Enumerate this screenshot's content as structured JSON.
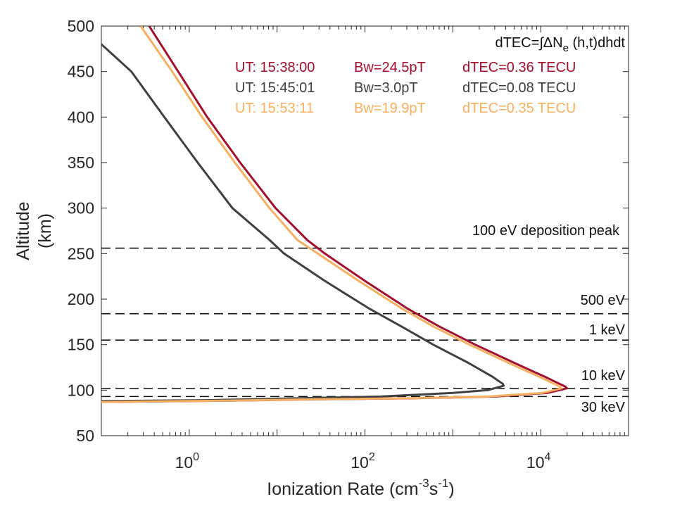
{
  "chart_data": {
    "type": "line",
    "xlabel": "Ionization Rate",
    "xlabel_unit_prefix": "(cm",
    "xlabel_exp1": "-3",
    "xlabel_unit_mid": "s",
    "xlabel_exp2": "-1",
    "xlabel_unit_suffix": ")",
    "ylabel_line1": "Altitude",
    "ylabel_line2": "(km)",
    "xscale": "log",
    "xlim": [
      0.1,
      100000
    ],
    "ylim": [
      50,
      500
    ],
    "yticks": [
      50,
      100,
      150,
      200,
      250,
      300,
      350,
      400,
      450,
      500
    ],
    "xticks": [
      {
        "value": 1,
        "base": "10",
        "exp": "0"
      },
      {
        "value": 100,
        "base": "10",
        "exp": "2"
      },
      {
        "value": 10000,
        "base": "10",
        "exp": "4"
      }
    ],
    "formula": {
      "prefix": "dTEC=",
      "integral": "∫",
      "mid": "ΔN",
      "sub": "e",
      "suffix": " (h,t)dhdt"
    },
    "series": [
      {
        "name": "UT: 15:38:00",
        "bw": "Bw=24.5pT",
        "dtec": "dTEC=0.36 TECU",
        "color": "#a0102e",
        "points": [
          [
            0.35,
            500
          ],
          [
            0.75,
            450
          ],
          [
            1.6,
            400
          ],
          [
            3.8,
            350
          ],
          [
            9.6,
            300
          ],
          [
            22,
            265
          ],
          [
            35,
            250
          ],
          [
            100,
            220
          ],
          [
            300,
            190
          ],
          [
            700,
            170
          ],
          [
            1800,
            150
          ],
          [
            5000,
            130
          ],
          [
            11000,
            115
          ],
          [
            19000,
            104
          ],
          [
            20000,
            102
          ],
          [
            12000,
            97
          ],
          [
            3000,
            93
          ],
          [
            300,
            91
          ],
          [
            30,
            90
          ],
          [
            3,
            88.5
          ],
          [
            0.3,
            87.5
          ],
          [
            0.1,
            87
          ]
        ]
      },
      {
        "name": "UT: 15:45:01",
        "bw": "Bw=3.0pT",
        "dtec": "dTEC=0.08 TECU",
        "color": "#404040",
        "points": [
          [
            0.1,
            480
          ],
          [
            0.22,
            450
          ],
          [
            0.52,
            400
          ],
          [
            1.25,
            350
          ],
          [
            3.1,
            300
          ],
          [
            8.2,
            265
          ],
          [
            12,
            250
          ],
          [
            35,
            220
          ],
          [
            110,
            190
          ],
          [
            260,
            170
          ],
          [
            600,
            150
          ],
          [
            1500,
            130
          ],
          [
            2800,
            115
          ],
          [
            3700,
            107
          ],
          [
            3800,
            105
          ],
          [
            2500,
            100
          ],
          [
            1000,
            97
          ],
          [
            150,
            93
          ],
          [
            15,
            91
          ],
          [
            1.5,
            89
          ],
          [
            0.1,
            88
          ]
        ]
      },
      {
        "name": "UT: 15:53:11",
        "bw": "Bw=19.9pT",
        "dtec": "dTEC=0.35 TECU",
        "color": "#f5b062",
        "points": [
          [
            0.28,
            500
          ],
          [
            0.64,
            450
          ],
          [
            1.4,
            400
          ],
          [
            3.3,
            350
          ],
          [
            8.2,
            300
          ],
          [
            17,
            265
          ],
          [
            29,
            250
          ],
          [
            85,
            220
          ],
          [
            260,
            190
          ],
          [
            600,
            170
          ],
          [
            1550,
            150
          ],
          [
            4300,
            130
          ],
          [
            9500,
            115
          ],
          [
            16500,
            104
          ],
          [
            17200,
            102
          ],
          [
            10500,
            97
          ],
          [
            2500,
            93
          ],
          [
            250,
            91
          ],
          [
            25,
            90
          ],
          [
            2.5,
            88.5
          ],
          [
            0.25,
            87.5
          ],
          [
            0.1,
            87
          ]
        ]
      }
    ],
    "reference_lines": [
      {
        "label": "100 eV deposition peak",
        "altitude": 256
      },
      {
        "label": "500 eV",
        "altitude": 184
      },
      {
        "label": "1 keV",
        "altitude": 155
      },
      {
        "label": "10 keV",
        "altitude": 102
      },
      {
        "label": "30 keV",
        "altitude": 93
      }
    ]
  }
}
